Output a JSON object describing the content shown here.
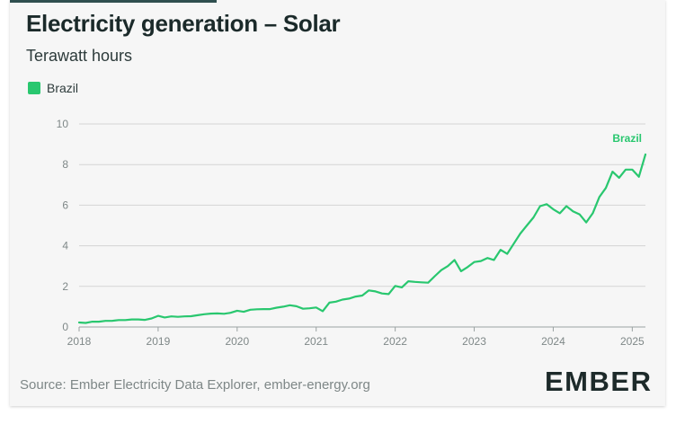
{
  "header": {
    "title": "Electricity generation – Solar",
    "subtitle": "Terawatt hours"
  },
  "footer": {
    "source": "Source: Ember Electricity Data Explorer, ember-energy.org",
    "logo_text": "EMBER"
  },
  "colors": {
    "series": "#29c76f",
    "grid": "#d4d4d4",
    "axis_text": "#7f8888"
  },
  "chart_data": {
    "type": "line",
    "title": "Electricity generation – Solar",
    "subtitle": "Terawatt hours",
    "xlabel": "",
    "ylabel": "Terawatt hours",
    "ylim": [
      0,
      10
    ],
    "yticks": [
      0,
      2,
      4,
      6,
      8,
      10
    ],
    "xlim": [
      "2018-01",
      "2025-03"
    ],
    "xticks": [
      "2018",
      "2019",
      "2020",
      "2021",
      "2022",
      "2023",
      "2024",
      "2025"
    ],
    "grid": true,
    "legend": "top-left",
    "series": [
      {
        "name": "Brazil",
        "end_label": "Brazil",
        "color": "#29c76f",
        "x": [
          "2018-01",
          "2018-02",
          "2018-03",
          "2018-04",
          "2018-05",
          "2018-06",
          "2018-07",
          "2018-08",
          "2018-09",
          "2018-10",
          "2018-11",
          "2018-12",
          "2019-01",
          "2019-02",
          "2019-03",
          "2019-04",
          "2019-05",
          "2019-06",
          "2019-07",
          "2019-08",
          "2019-09",
          "2019-10",
          "2019-11",
          "2019-12",
          "2020-01",
          "2020-02",
          "2020-03",
          "2020-04",
          "2020-05",
          "2020-06",
          "2020-07",
          "2020-08",
          "2020-09",
          "2020-10",
          "2020-11",
          "2020-12",
          "2021-01",
          "2021-02",
          "2021-03",
          "2021-04",
          "2021-05",
          "2021-06",
          "2021-07",
          "2021-08",
          "2021-09",
          "2021-10",
          "2021-11",
          "2021-12",
          "2022-01",
          "2022-02",
          "2022-03",
          "2022-04",
          "2022-05",
          "2022-06",
          "2022-07",
          "2022-08",
          "2022-09",
          "2022-10",
          "2022-11",
          "2022-12",
          "2023-01",
          "2023-02",
          "2023-03",
          "2023-04",
          "2023-05",
          "2023-06",
          "2023-07",
          "2023-08",
          "2023-09",
          "2023-10",
          "2023-11",
          "2023-12",
          "2024-01",
          "2024-02",
          "2024-03",
          "2024-04",
          "2024-05",
          "2024-06",
          "2024-07",
          "2024-08",
          "2024-09",
          "2024-10",
          "2024-11",
          "2024-12",
          "2025-01",
          "2025-02",
          "2025-03"
        ],
        "values": [
          0.22,
          0.2,
          0.26,
          0.26,
          0.3,
          0.3,
          0.34,
          0.34,
          0.37,
          0.37,
          0.35,
          0.42,
          0.55,
          0.47,
          0.52,
          0.5,
          0.52,
          0.53,
          0.58,
          0.63,
          0.66,
          0.67,
          0.65,
          0.7,
          0.8,
          0.75,
          0.85,
          0.87,
          0.88,
          0.88,
          0.95,
          1.0,
          1.07,
          1.02,
          0.9,
          0.92,
          0.96,
          0.78,
          1.2,
          1.25,
          1.35,
          1.4,
          1.5,
          1.55,
          1.8,
          1.75,
          1.65,
          1.62,
          2.02,
          1.95,
          2.25,
          2.22,
          2.2,
          2.18,
          2.5,
          2.8,
          3.0,
          3.3,
          2.75,
          2.95,
          3.2,
          3.25,
          3.4,
          3.3,
          3.8,
          3.6,
          4.1,
          4.6,
          5.0,
          5.4,
          5.95,
          6.05,
          5.8,
          5.6,
          5.95,
          5.7,
          5.55,
          5.15,
          5.6,
          6.4,
          6.85,
          7.65,
          7.35,
          7.75,
          7.75,
          7.4,
          8.5
        ]
      }
    ]
  }
}
